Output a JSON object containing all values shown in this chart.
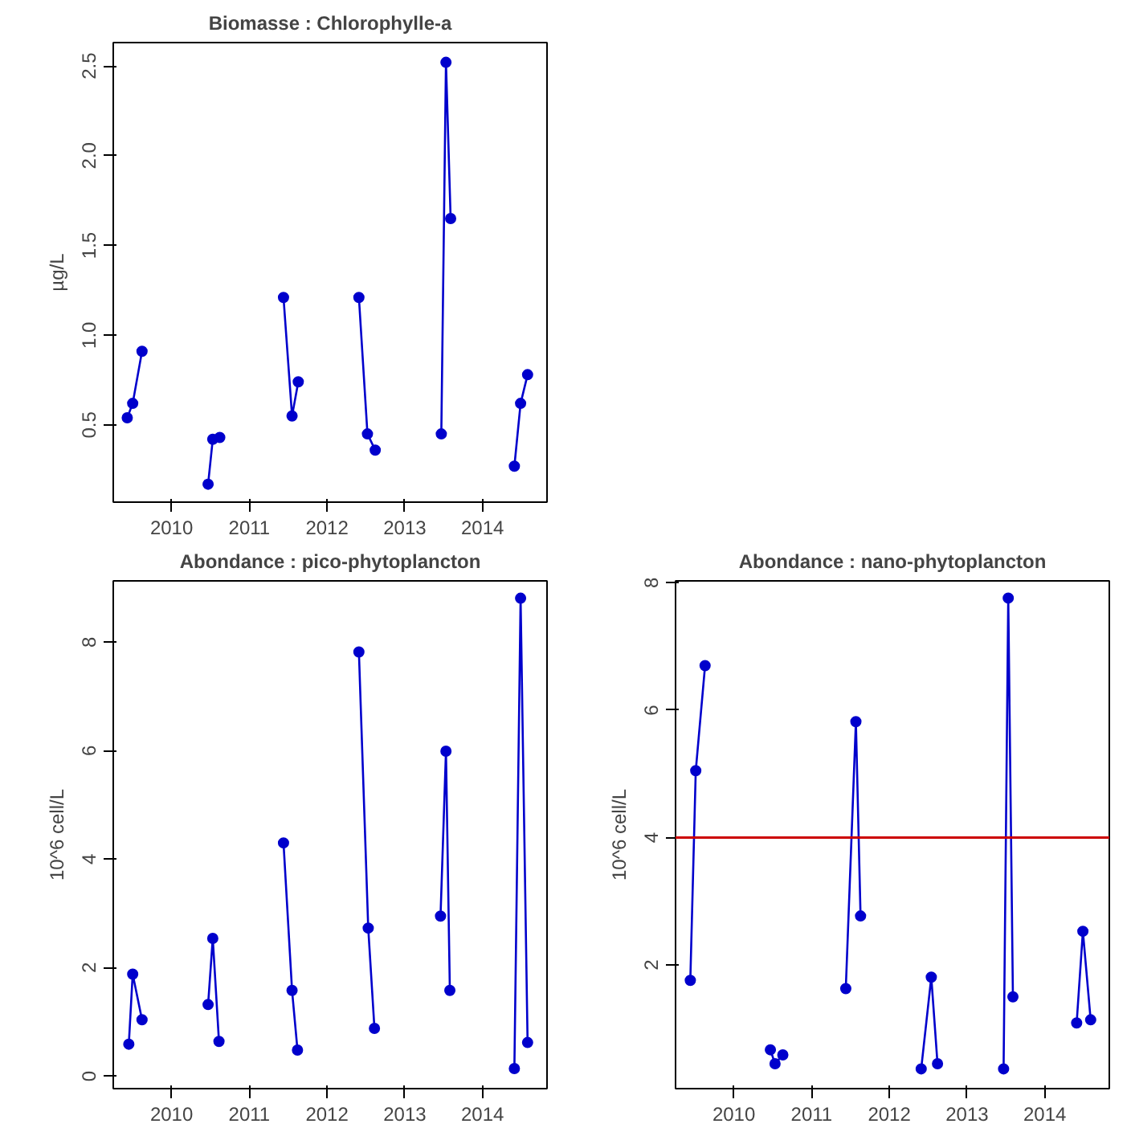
{
  "chart_data": [
    {
      "type": "line",
      "title": "Biomasse : Chlorophylle-a",
      "ylabel": "µg/L",
      "marker": "circle",
      "grid": false,
      "x": [
        2009.43,
        2009.5,
        2009.62,
        null,
        2010.47,
        2010.53,
        2010.62,
        null,
        2011.44,
        2011.55,
        2011.63,
        null,
        2012.41,
        2012.52,
        2012.62,
        null,
        2013.47,
        2013.53,
        2013.59,
        null,
        2014.41,
        2014.49,
        2014.58
      ],
      "series": [
        {
          "color": "#0000cc",
          "values": [
            0.54,
            0.62,
            0.91,
            null,
            0.17,
            0.42,
            0.43,
            null,
            1.21,
            0.55,
            0.74,
            null,
            1.21,
            0.45,
            0.36,
            null,
            0.45,
            2.52,
            1.65,
            null,
            0.27,
            0.62,
            0.78
          ]
        }
      ],
      "xlim": [
        2009.25,
        2014.83
      ],
      "xticks": [
        2010,
        2011,
        2012,
        2013,
        2014
      ],
      "ylim": [
        0.07,
        2.63
      ],
      "yticks": [
        0.5,
        {
          "value": 1,
          "label": "1.0"
        },
        1.5,
        {
          "value": 2,
          "label": "2.0"
        },
        2.5
      ]
    },
    {
      "type": "line",
      "title": "Abondance : pico-phytoplancton",
      "ylabel": "10^6 cell/L",
      "marker": "circle",
      "grid": false,
      "x": [
        2009.45,
        2009.5,
        2009.62,
        null,
        2010.47,
        2010.53,
        2010.61,
        null,
        2011.44,
        2011.55,
        2011.62,
        null,
        2012.41,
        2012.53,
        2012.61,
        null,
        2013.46,
        2013.53,
        2013.58,
        null,
        2014.41,
        2014.49,
        2014.58
      ],
      "series": [
        {
          "color": "#0000cc",
          "values": [
            0.59,
            1.88,
            1.04,
            null,
            1.32,
            2.54,
            0.64,
            null,
            4.3,
            1.58,
            0.48,
            null,
            7.82,
            2.73,
            0.88,
            null,
            2.95,
            5.99,
            1.58,
            null,
            0.14,
            8.81,
            0.62
          ]
        }
      ],
      "xlim": [
        2009.25,
        2014.83
      ],
      "xticks": [
        2010,
        2011,
        2012,
        2013,
        2014
      ],
      "ylim": [
        -0.23,
        9.13
      ],
      "yticks": [
        0,
        2,
        4,
        6,
        8
      ]
    },
    {
      "type": "line",
      "title": "Abondance : nano-phytoplancton",
      "ylabel": "10^6 cell/L",
      "marker": "circle",
      "grid": false,
      "x": [
        2009.44,
        2009.51,
        2009.63,
        null,
        2010.47,
        2010.53,
        2010.63,
        null,
        2011.44,
        2011.57,
        2011.63,
        null,
        2012.41,
        2012.54,
        2012.62,
        null,
        2013.47,
        2013.53,
        2013.59,
        null,
        2014.41,
        2014.49,
        2014.59
      ],
      "series": [
        {
          "color": "#0000cc",
          "values": [
            1.76,
            5.05,
            6.7,
            null,
            0.67,
            0.45,
            0.59,
            null,
            1.63,
            5.82,
            2.77,
            null,
            0.37,
            1.81,
            0.45,
            null,
            0.37,
            7.76,
            1.5,
            null,
            1.09,
            2.53,
            1.14
          ]
        }
      ],
      "xlim": [
        2009.25,
        2014.83
      ],
      "xticks": [
        2010,
        2011,
        2012,
        2013,
        2014
      ],
      "ylim": [
        0.06,
        8.03
      ],
      "yticks": [
        2,
        4,
        6,
        8
      ],
      "ref_lines": [
        {
          "axis": "y",
          "value": 4,
          "color": "#cc0000"
        }
      ]
    }
  ]
}
